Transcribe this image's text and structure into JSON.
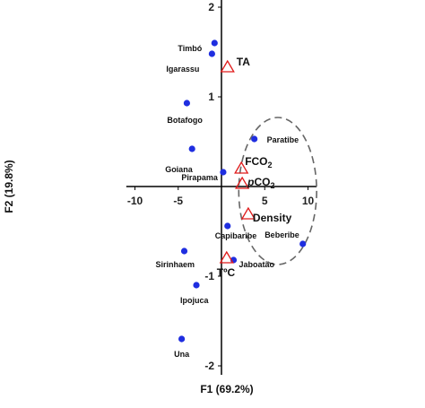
{
  "chart_data": {
    "type": "scatter",
    "xlabel": "F1 (69.2%)",
    "ylabel": "F2 (19.8%)",
    "xlim": [
      -11,
      11
    ],
    "ylim": [
      -2.1,
      2.1
    ],
    "x_ticks": [
      -10,
      -5,
      5,
      10
    ],
    "y_ticks": [
      2,
      1,
      -1,
      -2
    ],
    "sites": [
      {
        "label": "Timbó",
        "x": -0.8,
        "y": 1.6
      },
      {
        "label": "Igarassu",
        "x": -1.1,
        "y": 1.48
      },
      {
        "label": "Botafogo",
        "x": -4.0,
        "y": 0.93
      },
      {
        "label": "Goiana",
        "x": -3.4,
        "y": 0.42
      },
      {
        "label": "Pirapama",
        "x": 0.2,
        "y": 0.16
      },
      {
        "label": "Paratibe",
        "x": 3.8,
        "y": 0.53
      },
      {
        "label": "Capibaribe",
        "x": 0.7,
        "y": -0.44
      },
      {
        "label": "Jaboatão",
        "x": 1.4,
        "y": -0.82
      },
      {
        "label": "Beberibe",
        "x": 9.4,
        "y": -0.64
      },
      {
        "label": "Sirinhaem",
        "x": -4.3,
        "y": -0.72
      },
      {
        "label": "Ipojuca",
        "x": -2.9,
        "y": -1.1
      },
      {
        "label": "Una",
        "x": -4.6,
        "y": -1.7
      }
    ],
    "variables": [
      {
        "label": "TA",
        "x": 0.7,
        "y": 1.33
      },
      {
        "label": "FCO",
        "sub": "2",
        "x": 2.3,
        "y": 0.2
      },
      {
        "label": "pCO",
        "sub": "2",
        "x": 2.4,
        "y": 0.03
      },
      {
        "label": "Density",
        "x": 3.1,
        "y": -0.31
      },
      {
        "label": "TºC",
        "x": 0.6,
        "y": -0.8
      }
    ],
    "ellipse": {
      "cx": 6.5,
      "cy": -0.05,
      "rx": 4.5,
      "ry": 0.82
    }
  }
}
